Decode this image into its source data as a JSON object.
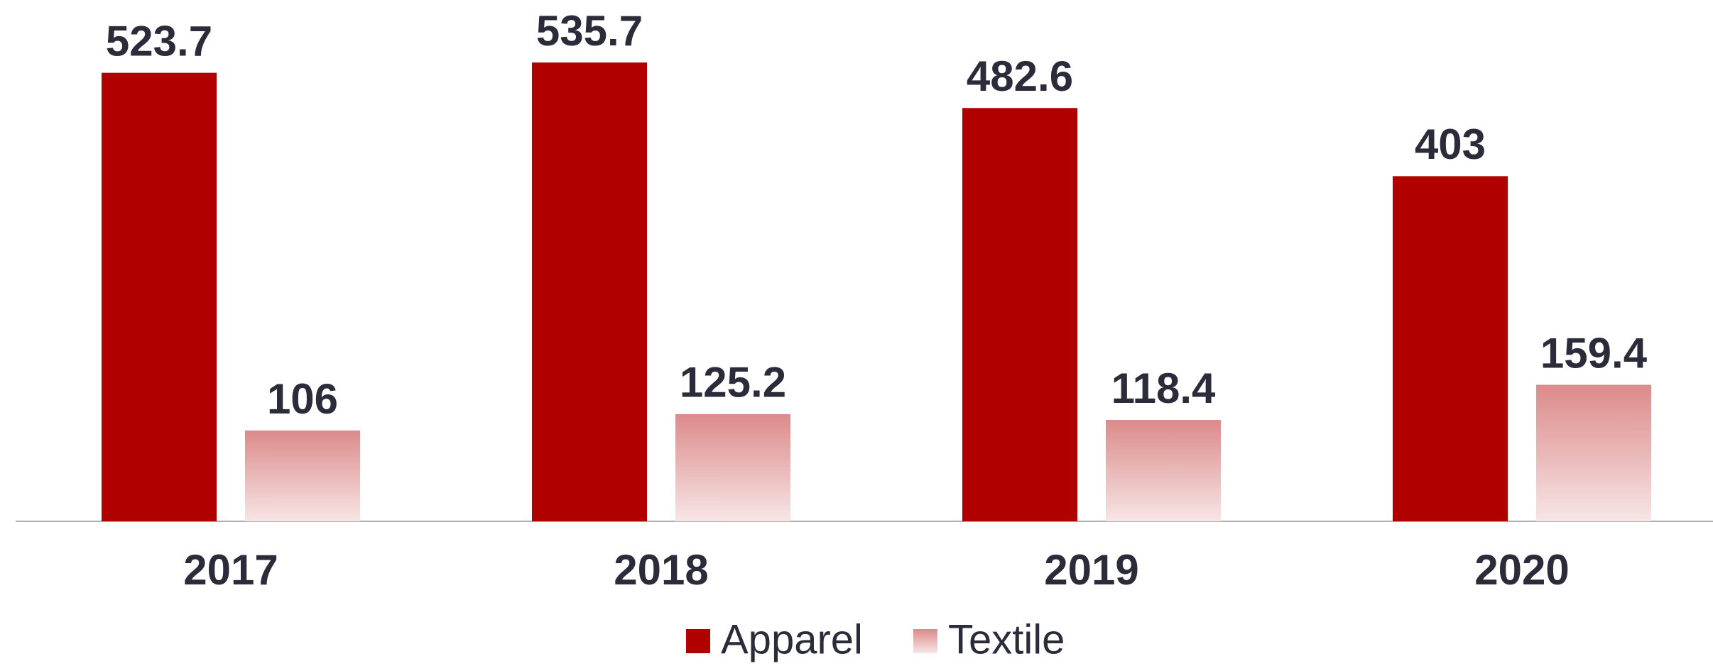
{
  "chart_data": {
    "type": "bar",
    "categories": [
      "2017",
      "2018",
      "2019",
      "2020"
    ],
    "series": [
      {
        "name": "Apparel",
        "color": "#b00000",
        "values": [
          523.7,
          535.7,
          482.6,
          403
        ]
      },
      {
        "name": "Textile",
        "color": "#dc8a8a",
        "values": [
          106,
          125.2,
          118.4,
          159.4
        ]
      }
    ],
    "ylim": [
      0,
      600
    ],
    "legend": "bottom"
  }
}
